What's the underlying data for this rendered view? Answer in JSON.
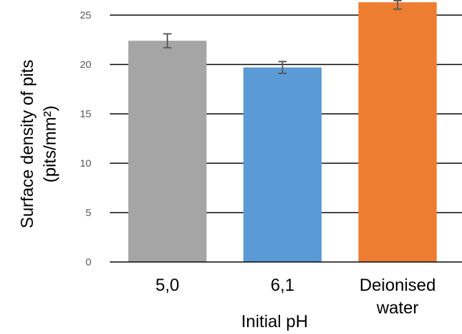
{
  "chart_data": {
    "type": "bar",
    "categories": [
      [
        "5,0"
      ],
      [
        "6,1"
      ],
      [
        "Deionised",
        "water"
      ]
    ],
    "values": [
      22.4,
      19.7,
      26.3
    ],
    "errors": [
      0.7,
      0.6,
      0.7
    ],
    "colors": [
      "#a5a5a5",
      "#5b9bd5",
      "#ed7d31"
    ],
    "xlabel": "Initial pH",
    "ylabel": [
      "Surface density of pits",
      "(pits/mm²)"
    ],
    "ylim": [
      0,
      25
    ],
    "yticks": [
      0,
      5,
      10,
      15,
      20,
      25
    ],
    "grid": true
  }
}
